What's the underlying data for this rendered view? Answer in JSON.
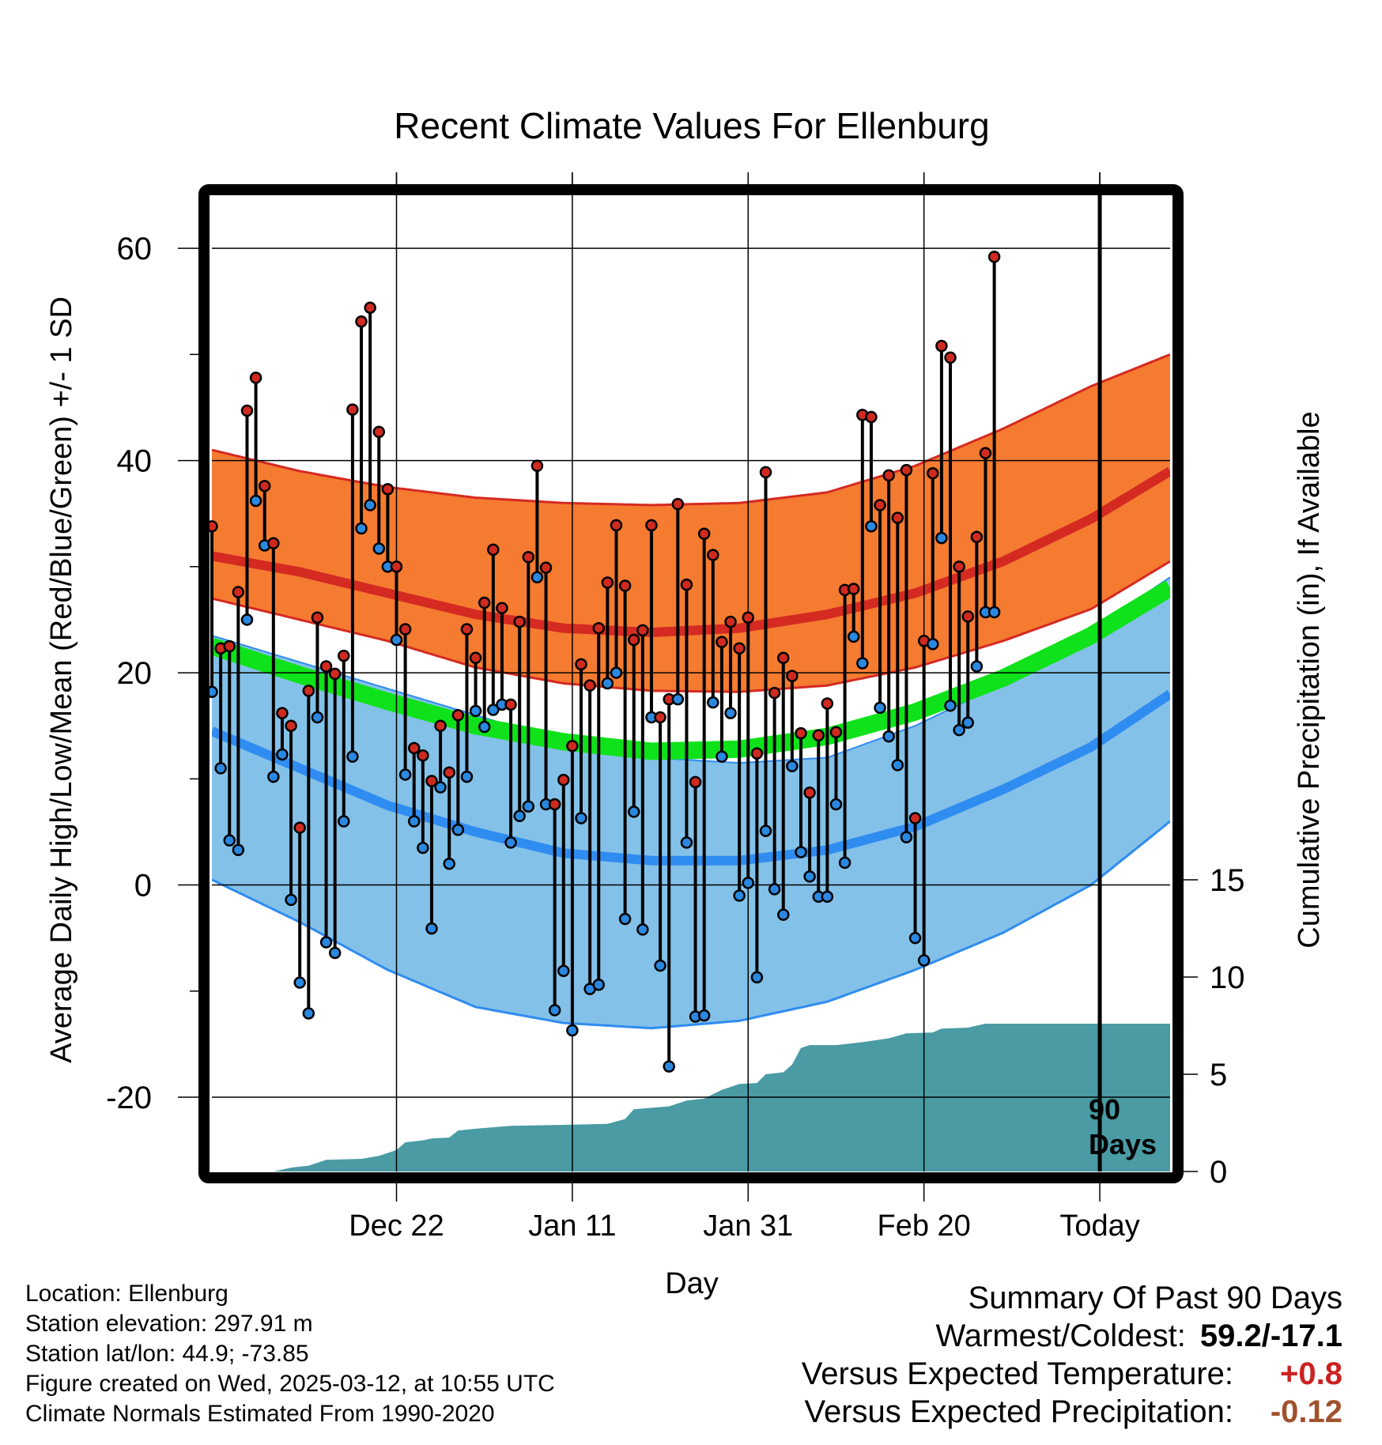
{
  "title": "Recent Climate Values For Ellenburg",
  "left_axis_label": "Average Daily High/Low/Mean (Red/Blue/Green) +/- 1 SD",
  "right_axis_label": "Cumulative Precipitation (in), If Available",
  "x_axis_label": "Day",
  "today_marker": {
    "line1": "90",
    "line2": "Days"
  },
  "info": {
    "location": "Location: Ellenburg",
    "elevation": "Station elevation: 297.91 m",
    "latlon": "Station lat/lon: 44.9; -73.85",
    "created": "Figure created on Wed, 2025-03-12, at 10:55 UTC",
    "normals": "Climate Normals Estimated From 1990-2020"
  },
  "summary": {
    "heading": "Summary Of Past 90 Days",
    "warmest_label": "Warmest/Coldest:",
    "warmest_value": "59.2/-17.1",
    "temp_label": "Versus Expected Temperature:",
    "temp_value": "+0.8",
    "temp_color": "#cc2222",
    "precip_label": "Versus Expected Precipitation:",
    "precip_value": "-0.12",
    "precip_color": "#a0522d"
  },
  "chart_data": {
    "type": "line",
    "x_axis": {
      "range_days": [
        -100,
        9
      ],
      "ticks": [
        {
          "day": -79,
          "label": "Dec 22"
        },
        {
          "day": -59,
          "label": "Jan 11"
        },
        {
          "day": -39,
          "label": "Jan 31"
        },
        {
          "day": -19,
          "label": "Feb 20"
        },
        {
          "day": 1,
          "label": "Today"
        }
      ]
    },
    "y_axis_left": {
      "range": [
        -27,
        65
      ],
      "ticks": [
        -20,
        0,
        20,
        40,
        60
      ]
    },
    "y_axis_right": {
      "range": [
        0,
        15
      ],
      "ticks": [
        0,
        5,
        10,
        15
      ]
    },
    "grid": true,
    "colors": {
      "high_band": "#f57b30",
      "high_normal": "#d42a22",
      "high_band_edge": "#d42a22",
      "overlap_band": "#961217",
      "mean_normal": "#0fe21a",
      "low_band": "#84c1e8",
      "low_normal": "#2f8cf0",
      "low_band_edge": "#2f8cf0",
      "precip": "#4a9ba4",
      "high_dot": "#d02a20",
      "low_dot": "#2a88e0"
    },
    "normal_day_knots": [
      -100,
      -90,
      -80,
      -70,
      -60,
      -50,
      -40,
      -30,
      -20,
      -10,
      0,
      9
    ],
    "normal_high": [
      31,
      29.5,
      27.5,
      25.5,
      24.2,
      23.8,
      24.2,
      25.5,
      27.5,
      30.5,
      34.5,
      39
    ],
    "normal_high_sd_upper": [
      41,
      39,
      37.5,
      36.5,
      36,
      35.8,
      36,
      37,
      39.5,
      43,
      47,
      50
    ],
    "normal_high_sd_lower": [
      27,
      25,
      23,
      20.5,
      19,
      18.3,
      18.2,
      18.8,
      20.5,
      23,
      26,
      30.5
    ],
    "normal_mean": [
      22.5,
      19.8,
      17.3,
      15,
      13.5,
      12.6,
      12.8,
      14,
      16.3,
      19.5,
      23.5,
      28
    ],
    "normal_low": [
      14.5,
      11,
      7.5,
      5,
      3,
      2.3,
      2.3,
      3.3,
      5.5,
      9,
      13,
      18
    ],
    "normal_low_sd_upper": [
      23.5,
      21,
      18.5,
      16,
      13.5,
      12,
      11.5,
      12,
      15,
      19,
      24,
      29
    ],
    "normal_low_sd_lower": [
      0.5,
      -3.5,
      -8,
      -11.5,
      -13,
      -13.5,
      -12.8,
      -11,
      -8,
      -4.5,
      0,
      6
    ],
    "daily": [
      {
        "day": -100,
        "high": 33.8,
        "low": 18.2
      },
      {
        "day": -99,
        "high": 22.3,
        "low": 11.0
      },
      {
        "day": -98,
        "high": 22.5,
        "low": 4.2
      },
      {
        "day": -97,
        "high": 27.6,
        "low": 3.3
      },
      {
        "day": -96,
        "high": 44.7,
        "low": 25.0
      },
      {
        "day": -95,
        "high": 47.8,
        "low": 36.2
      },
      {
        "day": -94,
        "high": 37.6,
        "low": 32.0
      },
      {
        "day": -93,
        "high": 32.2,
        "low": 10.2
      },
      {
        "day": -92,
        "high": 16.2,
        "low": 12.3
      },
      {
        "day": -91,
        "high": 15.0,
        "low": -1.4
      },
      {
        "day": -90,
        "high": 5.4,
        "low": -9.2
      },
      {
        "day": -89,
        "high": 18.3,
        "low": -12.1
      },
      {
        "day": -88,
        "high": 25.2,
        "low": 15.8
      },
      {
        "day": -87,
        "high": 20.6,
        "low": -5.4
      },
      {
        "day": -86,
        "high": 19.9,
        "low": -6.4
      },
      {
        "day": -85,
        "high": 21.6,
        "low": 6.0
      },
      {
        "day": -84,
        "high": 44.8,
        "low": 12.1
      },
      {
        "day": -83,
        "high": 53.1,
        "low": 33.6
      },
      {
        "day": -82,
        "high": 54.4,
        "low": 35.8
      },
      {
        "day": -81,
        "high": 42.7,
        "low": 31.7
      },
      {
        "day": -80,
        "high": 37.3,
        "low": 30.0
      },
      {
        "day": -79,
        "high": 30.0,
        "low": 23.1
      },
      {
        "day": -78,
        "high": 24.1,
        "low": 10.4
      },
      {
        "day": -77,
        "high": 12.9,
        "low": 6.0
      },
      {
        "day": -76,
        "high": 12.2,
        "low": 3.5
      },
      {
        "day": -75,
        "high": 9.8,
        "low": -4.1
      },
      {
        "day": -74,
        "high": 15.0,
        "low": 9.2
      },
      {
        "day": -73,
        "high": 10.6,
        "low": 2.0
      },
      {
        "day": -72,
        "high": 16.0,
        "low": 5.2
      },
      {
        "day": -71,
        "high": 24.1,
        "low": 10.2
      },
      {
        "day": -70,
        "high": 21.4,
        "low": 16.4
      },
      {
        "day": -69,
        "high": 26.6,
        "low": 14.9
      },
      {
        "day": -68,
        "high": 31.6,
        "low": 16.5
      },
      {
        "day": -67,
        "high": 26.1,
        "low": 17.0
      },
      {
        "day": -66,
        "high": 17.0,
        "low": 4.0
      },
      {
        "day": -65,
        "high": 24.8,
        "low": 6.5
      },
      {
        "day": -64,
        "high": 30.9,
        "low": 7.4
      },
      {
        "day": -63,
        "high": 39.5,
        "low": 29.0
      },
      {
        "day": -62,
        "high": 29.9,
        "low": 7.6
      },
      {
        "day": -61,
        "high": 7.6,
        "low": -11.8
      },
      {
        "day": -60,
        "high": 9.9,
        "low": -8.1
      },
      {
        "day": -59,
        "high": 13.1,
        "low": -13.7
      },
      {
        "day": -58,
        "high": 20.8,
        "low": 6.3
      },
      {
        "day": -57,
        "high": 18.8,
        "low": -9.8
      },
      {
        "day": -56,
        "high": 24.2,
        "low": -9.4
      },
      {
        "day": -55,
        "high": 28.5,
        "low": 19.0
      },
      {
        "day": -54,
        "high": 33.9,
        "low": 20.0
      },
      {
        "day": -53,
        "high": 28.2,
        "low": -3.2
      },
      {
        "day": -52,
        "high": 23.1,
        "low": 6.9
      },
      {
        "day": -51,
        "high": 24.0,
        "low": -4.2
      },
      {
        "day": -50,
        "high": 33.9,
        "low": 15.8
      },
      {
        "day": -49,
        "high": 15.8,
        "low": -7.6
      },
      {
        "day": -48,
        "high": 17.5,
        "low": -17.1
      },
      {
        "day": -47,
        "high": 35.9,
        "low": 17.5
      },
      {
        "day": -46,
        "high": 28.3,
        "low": 4.0
      },
      {
        "day": -45,
        "high": 9.7,
        "low": -12.4
      },
      {
        "day": -44,
        "high": 33.1,
        "low": -12.3
      },
      {
        "day": -43,
        "high": 31.1,
        "low": 17.2
      },
      {
        "day": -42,
        "high": 22.9,
        "low": 12.1
      },
      {
        "day": -41,
        "high": 24.8,
        "low": 16.2
      },
      {
        "day": -40,
        "high": 22.3,
        "low": -1.0
      },
      {
        "day": -39,
        "high": 25.2,
        "low": 0.2
      },
      {
        "day": -38,
        "high": 12.4,
        "low": -8.7
      },
      {
        "day": -37,
        "high": 38.9,
        "low": 5.1
      },
      {
        "day": -36,
        "high": 18.1,
        "low": -0.4
      },
      {
        "day": -35,
        "high": 21.4,
        "low": -2.8
      },
      {
        "day": -34,
        "high": 19.7,
        "low": 11.2
      },
      {
        "day": -33,
        "high": 14.3,
        "low": 3.1
      },
      {
        "day": -32,
        "high": 8.7,
        "low": 0.8
      },
      {
        "day": -31,
        "high": 14.1,
        "low": -1.1
      },
      {
        "day": -30,
        "high": 17.1,
        "low": -1.1
      },
      {
        "day": -29,
        "high": 14.4,
        "low": 7.6
      },
      {
        "day": -28,
        "high": 27.8,
        "low": 2.1
      },
      {
        "day": -27,
        "high": 27.9,
        "low": 23.4
      },
      {
        "day": -26,
        "high": 44.3,
        "low": 20.9
      },
      {
        "day": -25,
        "high": 44.1,
        "low": 33.8
      },
      {
        "day": -24,
        "high": 35.8,
        "low": 16.7
      },
      {
        "day": -23,
        "high": 38.6,
        "low": 14.0
      },
      {
        "day": -22,
        "high": 34.6,
        "low": 11.3
      },
      {
        "day": -21,
        "high": 39.1,
        "low": 4.5
      },
      {
        "day": -20,
        "high": 6.3,
        "low": -5.0
      },
      {
        "day": -19,
        "high": 23.0,
        "low": -7.1
      },
      {
        "day": -18,
        "high": 38.8,
        "low": 22.7
      },
      {
        "day": -17,
        "high": 50.8,
        "low": 32.7
      },
      {
        "day": -16,
        "high": 49.7,
        "low": 16.9
      },
      {
        "day": -15,
        "high": 30.0,
        "low": 14.6
      },
      {
        "day": -14,
        "high": 25.3,
        "low": 15.3
      },
      {
        "day": -13,
        "high": 32.8,
        "low": 20.6
      },
      {
        "day": -12,
        "high": 40.7,
        "low": 25.7
      },
      {
        "day": -11,
        "high": 59.2,
        "low": 25.7
      }
    ],
    "cumulative_precip": [
      {
        "day": -100,
        "in": 0
      },
      {
        "day": -93,
        "in": 0
      },
      {
        "day": -91,
        "in": 0.2
      },
      {
        "day": -89,
        "in": 0.3
      },
      {
        "day": -87,
        "in": 0.6
      },
      {
        "day": -83,
        "in": 0.65
      },
      {
        "day": -81,
        "in": 0.8
      },
      {
        "day": -79,
        "in": 1.1
      },
      {
        "day": -78,
        "in": 1.5
      },
      {
        "day": -76,
        "in": 1.6
      },
      {
        "day": -75,
        "in": 1.7
      },
      {
        "day": -73,
        "in": 1.75
      },
      {
        "day": -72,
        "in": 2.1
      },
      {
        "day": -70,
        "in": 2.2
      },
      {
        "day": -66,
        "in": 2.35
      },
      {
        "day": -60,
        "in": 2.4
      },
      {
        "day": -55,
        "in": 2.45
      },
      {
        "day": -53,
        "in": 2.7
      },
      {
        "day": -52,
        "in": 3.2
      },
      {
        "day": -48,
        "in": 3.35
      },
      {
        "day": -46,
        "in": 3.65
      },
      {
        "day": -44,
        "in": 3.75
      },
      {
        "day": -42,
        "in": 4.2
      },
      {
        "day": -40,
        "in": 4.5
      },
      {
        "day": -38,
        "in": 4.55
      },
      {
        "day": -37,
        "in": 5.0
      },
      {
        "day": -35,
        "in": 5.1
      },
      {
        "day": -34,
        "in": 5.5
      },
      {
        "day": -33,
        "in": 6.35
      },
      {
        "day": -32,
        "in": 6.5
      },
      {
        "day": -29,
        "in": 6.5
      },
      {
        "day": -26,
        "in": 6.65
      },
      {
        "day": -23,
        "in": 6.85
      },
      {
        "day": -21,
        "in": 7.1
      },
      {
        "day": -18,
        "in": 7.15
      },
      {
        "day": -17,
        "in": 7.35
      },
      {
        "day": -14,
        "in": 7.4
      },
      {
        "day": -12,
        "in": 7.6
      },
      {
        "day": 9,
        "in": 7.6
      }
    ]
  }
}
